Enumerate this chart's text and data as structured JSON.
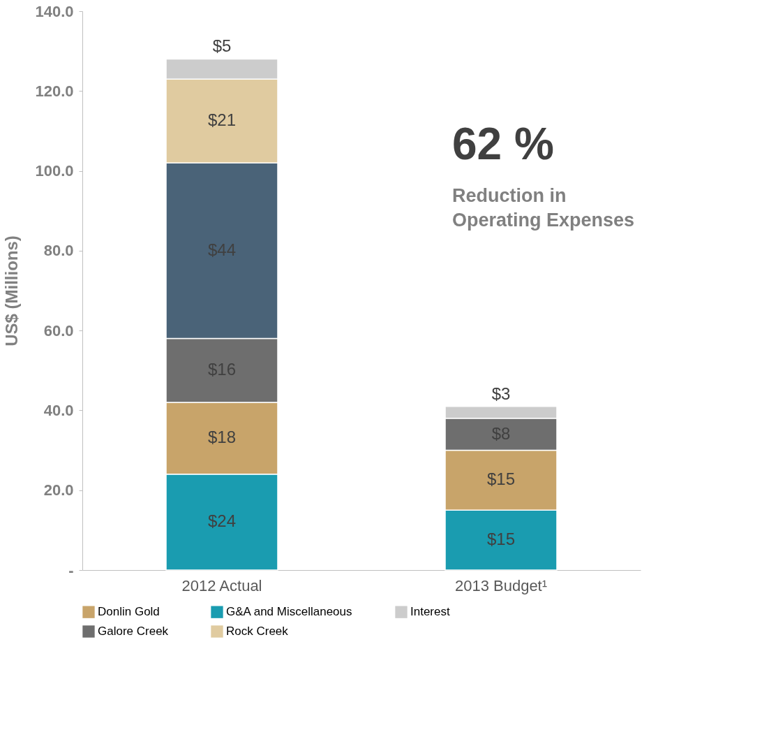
{
  "chart_data": {
    "type": "bar",
    "stacked": true,
    "categories": [
      "2012 Actual",
      "2013 Budget¹"
    ],
    "ylabel": "US$ (Millions)",
    "ylim": [
      0,
      140
    ],
    "yticks": [
      {
        "value": 0,
        "label": "-"
      },
      {
        "value": 20,
        "label": "20.0"
      },
      {
        "value": 40,
        "label": "40.0"
      },
      {
        "value": 60,
        "label": "60.0"
      },
      {
        "value": 80,
        "label": "80.0"
      },
      {
        "value": 100,
        "label": "100.0"
      },
      {
        "value": 120,
        "label": "120.0"
      },
      {
        "value": 140,
        "label": "140.0"
      }
    ],
    "series": [
      {
        "name": "G&A and Miscellaneous",
        "color": "#1a9cb0",
        "values": [
          24,
          15
        ],
        "value_labels": [
          "$24",
          "$15"
        ]
      },
      {
        "name": "Donlin Gold",
        "color": "#c8a46a",
        "values": [
          18,
          15
        ],
        "value_labels": [
          "$18",
          "$15"
        ]
      },
      {
        "name": "Galore Creek",
        "color": "#6e6e6e",
        "values": [
          16,
          8
        ],
        "value_labels": [
          "$16",
          "$8"
        ]
      },
      {
        "color": "#4a6378",
        "values": [
          44,
          null
        ],
        "value_labels": [
          "$44",
          null
        ]
      },
      {
        "name": "Rock Creek",
        "color": "#e0cba0",
        "values": [
          21,
          null
        ],
        "value_labels": [
          "$21",
          null
        ]
      },
      {
        "name": "Interest",
        "color": "#cccccc",
        "values": [
          5,
          3
        ],
        "value_labels": [
          "$5",
          "$3"
        ]
      }
    ],
    "legend": "bottom",
    "grid": false,
    "annotations": [
      "62 %",
      "Reduction in",
      "Operating Expenses"
    ]
  }
}
